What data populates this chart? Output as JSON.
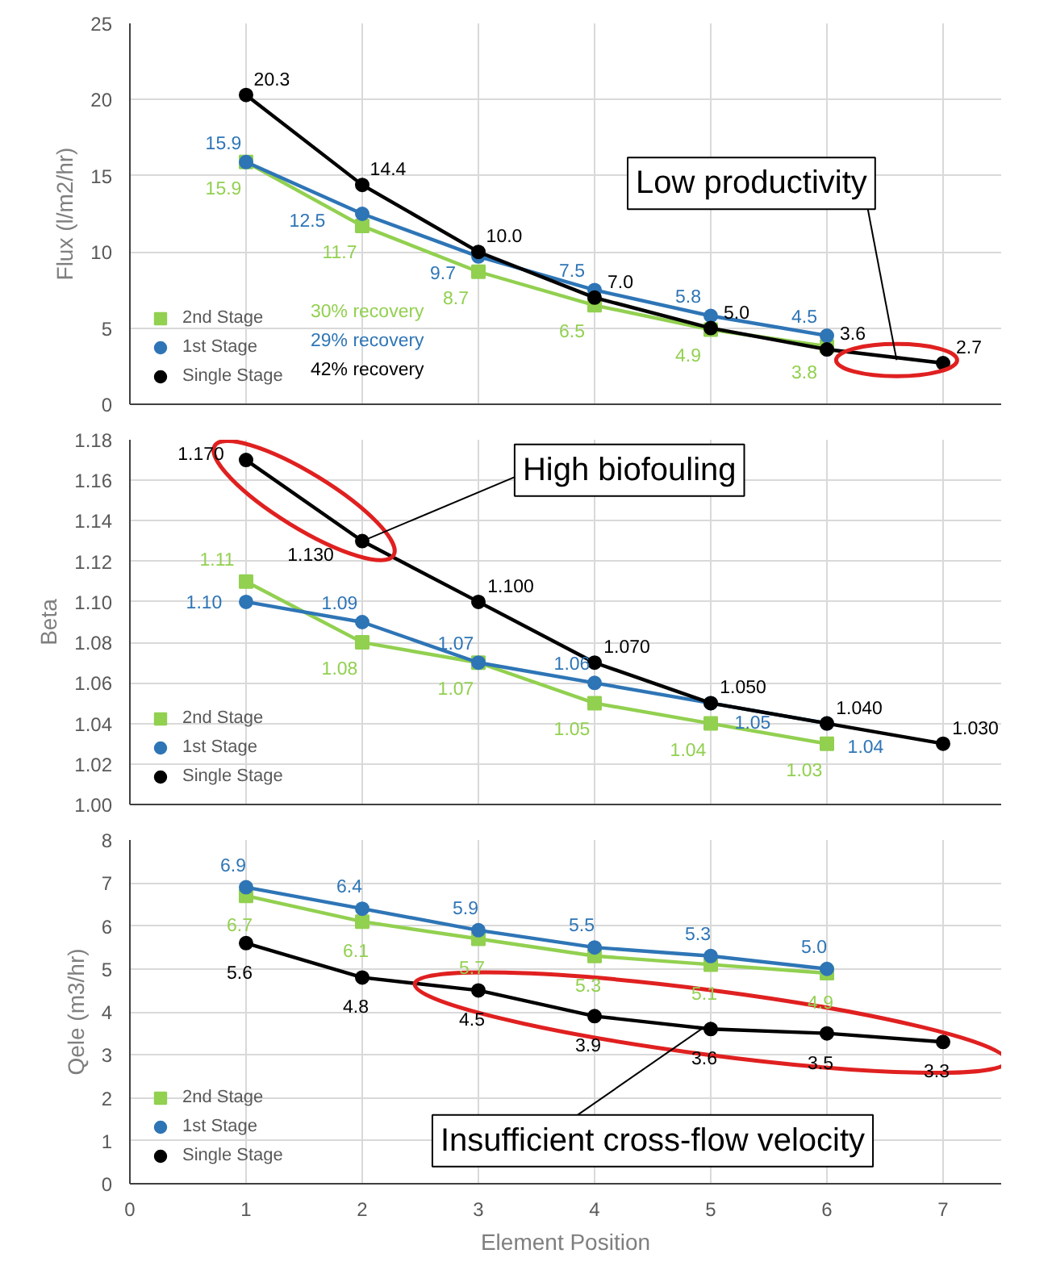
{
  "chart_data": [
    {
      "type": "line",
      "ylabel": "Flux (l/m2/hr)",
      "xlim": [
        0,
        7.5
      ],
      "xticks": [
        0,
        1,
        2,
        3,
        4,
        5,
        6,
        7
      ],
      "ylim": [
        0,
        25
      ],
      "yticks": [
        0,
        5,
        10,
        15,
        20,
        25
      ],
      "tick_labels": "y",
      "grid": true,
      "legend": "bottom left",
      "series": [
        {
          "name": "2nd Stage",
          "color": "#92d050",
          "marker": "square",
          "x": [
            1,
            2,
            3,
            4,
            5,
            6
          ],
          "values": [
            15.9,
            11.7,
            8.7,
            6.5,
            4.9,
            3.8
          ],
          "value_labels": [
            "15.9",
            "11.7",
            "8.7",
            "6.5",
            "4.9",
            "3.8"
          ]
        },
        {
          "name": "1st Stage",
          "color": "#2e75b6",
          "marker": "circle",
          "x": [
            1,
            2,
            3,
            4,
            5,
            6
          ],
          "values": [
            15.9,
            12.5,
            9.7,
            7.5,
            5.8,
            4.5
          ],
          "value_labels": [
            "15.9",
            "12.5",
            "9.7",
            "7.5",
            "5.8",
            "4.5"
          ]
        },
        {
          "name": "Single Stage",
          "color": "#000000",
          "marker": "circle",
          "x": [
            1,
            2,
            3,
            4,
            5,
            6,
            7
          ],
          "values": [
            20.3,
            14.4,
            10.0,
            7.0,
            5.0,
            3.6,
            2.7
          ],
          "value_labels": [
            "20.3",
            "14.4",
            "10.0",
            "7.0",
            "5.0",
            "3.6",
            "2.7"
          ]
        }
      ],
      "annotations": [
        "30% recovery",
        "29% recovery",
        "42% recovery",
        {
          "text": "Low productivity",
          "x": 6.6,
          "y": 2.9
        }
      ]
    },
    {
      "type": "line",
      "ylabel": "Beta",
      "xlim": [
        0,
        7.5
      ],
      "xticks": [
        0,
        1,
        2,
        3,
        4,
        5,
        6,
        7
      ],
      "ylim": [
        1.0,
        1.18
      ],
      "yticks": [
        {
          "value": 1.0,
          "label": "1.00"
        },
        {
          "value": 1.02,
          "label": "1.02"
        },
        {
          "value": 1.04,
          "label": "1.04"
        },
        {
          "value": 1.06,
          "label": "1.06"
        },
        {
          "value": 1.08,
          "label": "1.08"
        },
        {
          "value": 1.1,
          "label": "1.10"
        },
        {
          "value": 1.12,
          "label": "1.12"
        },
        {
          "value": 1.14,
          "label": "1.14"
        },
        {
          "value": 1.16,
          "label": "1.16"
        },
        {
          "value": 1.18,
          "label": "1.18"
        }
      ],
      "tick_labels": "y",
      "grid": true,
      "legend": "bottom left",
      "series": [
        {
          "name": "2nd Stage",
          "color": "#92d050",
          "marker": "square",
          "x": [
            1,
            2,
            3,
            4,
            5,
            6
          ],
          "values": [
            1.11,
            1.08,
            1.07,
            1.05,
            1.04,
            1.03
          ],
          "value_labels": [
            "1.11",
            "1.08",
            "1.07",
            "1.05",
            "1.04",
            "1.03"
          ]
        },
        {
          "name": "1st Stage",
          "color": "#2e75b6",
          "marker": "circle",
          "x": [
            1,
            2,
            3,
            4,
            5,
            6
          ],
          "values": [
            1.1,
            1.09,
            1.07,
            1.06,
            1.05,
            1.04
          ],
          "value_labels": [
            "1.10",
            "1.09",
            "1.07",
            "1.06",
            "1.05",
            "1.04"
          ]
        },
        {
          "name": "Single Stage",
          "color": "#000000",
          "marker": "circle",
          "x": [
            1,
            2,
            3,
            4,
            5,
            6,
            7
          ],
          "values": [
            1.17,
            1.13,
            1.1,
            1.07,
            1.05,
            1.04,
            1.03
          ],
          "value_labels": [
            "1.170",
            "1.130",
            "1.100",
            "1.070",
            "1.050",
            "1.040",
            "1.030"
          ]
        }
      ],
      "annotations": [
        {
          "text": "High biofouling",
          "x": 2,
          "y": 1.13
        }
      ]
    },
    {
      "type": "line",
      "ylabel": "Qele (m3/hr)",
      "xlabel": "Element Position",
      "xlim": [
        0,
        7.5
      ],
      "xticks": [
        0,
        1,
        2,
        3,
        4,
        5,
        6,
        7
      ],
      "ylim": [
        0,
        8
      ],
      "yticks": [
        0,
        1,
        2,
        3,
        4,
        5,
        6,
        7,
        8
      ],
      "grid": true,
      "legend": "bottom left",
      "series": [
        {
          "name": "2nd Stage",
          "color": "#92d050",
          "marker": "square",
          "x": [
            1,
            2,
            3,
            4,
            5,
            6
          ],
          "values": [
            6.7,
            6.1,
            5.7,
            5.3,
            5.1,
            4.9
          ],
          "value_labels": [
            "6.7",
            "6.1",
            "5.7",
            "5.3",
            "5.1",
            "4.9"
          ]
        },
        {
          "name": "1st Stage",
          "color": "#2e75b6",
          "marker": "circle",
          "x": [
            1,
            2,
            3,
            4,
            5,
            6
          ],
          "values": [
            6.9,
            6.4,
            5.9,
            5.5,
            5.3,
            5.0
          ],
          "value_labels": [
            "6.9",
            "6.4",
            "5.9",
            "5.5",
            "5.3",
            "5.0"
          ]
        },
        {
          "name": "Single Stage",
          "color": "#000000",
          "marker": "circle",
          "x": [
            1,
            2,
            3,
            4,
            5,
            6,
            7
          ],
          "values": [
            5.6,
            4.8,
            4.5,
            3.9,
            3.6,
            3.5,
            3.3
          ],
          "value_labels": [
            "5.6",
            "4.8",
            "4.5",
            "3.9",
            "3.6",
            "3.5",
            "3.3"
          ]
        }
      ],
      "annotations": [
        {
          "text": "Insufficient cross-flow velocity",
          "x": 5,
          "y": 3.75
        }
      ]
    }
  ]
}
